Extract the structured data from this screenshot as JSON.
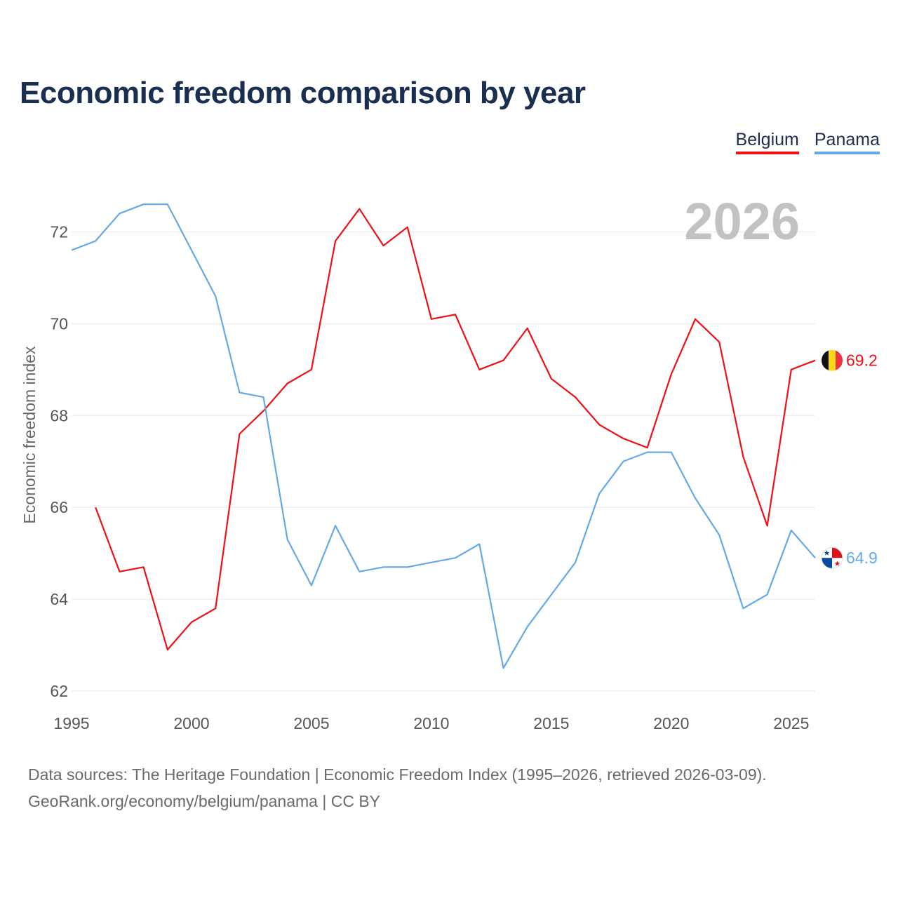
{
  "title": "Economic freedom comparison by year",
  "legend": [
    {
      "name": "Belgium",
      "color": "#ef0f15"
    },
    {
      "name": "Panama",
      "color": "#64a9e6"
    }
  ],
  "current_year": "2026",
  "end_labels": {
    "Belgium": "69.2",
    "Panama": "64.9"
  },
  "source": {
    "line1": "Data sources: The Heritage Foundation | Economic Freedom Index (1995–2026, retrieved 2026-03-09).",
    "line2": "GeoRank.org/economy/belgium/panama | CC BY"
  },
  "chart_data": {
    "type": "line",
    "title": "Economic freedom comparison by year",
    "xlabel": "",
    "ylabel": "Economic freedom index",
    "xlim": [
      1995,
      2026
    ],
    "ylim": [
      62,
      73
    ],
    "x_ticks": [
      1995,
      2000,
      2005,
      2010,
      2015,
      2020,
      2025
    ],
    "y_ticks": [
      62,
      64,
      66,
      68,
      70,
      72
    ],
    "series": [
      {
        "name": "Belgium",
        "color": "#ef0f15",
        "points": [
          [
            1996,
            66.0
          ],
          [
            1997,
            64.6
          ],
          [
            1998,
            64.7
          ],
          [
            1999,
            62.9
          ],
          [
            2000,
            63.5
          ],
          [
            2001,
            63.8
          ],
          [
            2002,
            67.6
          ],
          [
            2003,
            68.1
          ],
          [
            2004,
            68.7
          ],
          [
            2005,
            69.0
          ],
          [
            2006,
            71.8
          ],
          [
            2007,
            72.5
          ],
          [
            2008,
            71.7
          ],
          [
            2009,
            72.1
          ],
          [
            2010,
            70.1
          ],
          [
            2011,
            70.2
          ],
          [
            2012,
            69.0
          ],
          [
            2013,
            69.2
          ],
          [
            2014,
            69.9
          ],
          [
            2015,
            68.8
          ],
          [
            2016,
            68.4
          ],
          [
            2017,
            67.8
          ],
          [
            2018,
            67.5
          ],
          [
            2019,
            67.3
          ],
          [
            2020,
            68.9
          ],
          [
            2021,
            70.1
          ],
          [
            2022,
            69.6
          ],
          [
            2023,
            67.1
          ],
          [
            2024,
            65.6
          ],
          [
            2025,
            69.0
          ],
          [
            2026,
            69.2
          ]
        ]
      },
      {
        "name": "Panama",
        "color": "#64a9e6",
        "points": [
          [
            1995,
            71.6
          ],
          [
            1996,
            71.8
          ],
          [
            1997,
            72.4
          ],
          [
            1998,
            72.6
          ],
          [
            1999,
            72.6
          ],
          [
            2000,
            71.6
          ],
          [
            2001,
            70.6
          ],
          [
            2002,
            68.5
          ],
          [
            2003,
            68.4
          ],
          [
            2004,
            65.3
          ],
          [
            2005,
            64.3
          ],
          [
            2006,
            65.6
          ],
          [
            2007,
            64.6
          ],
          [
            2008,
            64.7
          ],
          [
            2009,
            64.7
          ],
          [
            2010,
            64.8
          ],
          [
            2011,
            64.9
          ],
          [
            2012,
            65.2
          ],
          [
            2013,
            62.5
          ],
          [
            2014,
            63.4
          ],
          [
            2015,
            64.1
          ],
          [
            2016,
            64.8
          ],
          [
            2017,
            66.3
          ],
          [
            2018,
            67.0
          ],
          [
            2019,
            67.2
          ],
          [
            2020,
            67.2
          ],
          [
            2021,
            66.2
          ],
          [
            2022,
            65.4
          ],
          [
            2023,
            63.8
          ],
          [
            2024,
            64.1
          ],
          [
            2025,
            65.5
          ],
          [
            2026,
            64.9
          ]
        ]
      }
    ]
  }
}
